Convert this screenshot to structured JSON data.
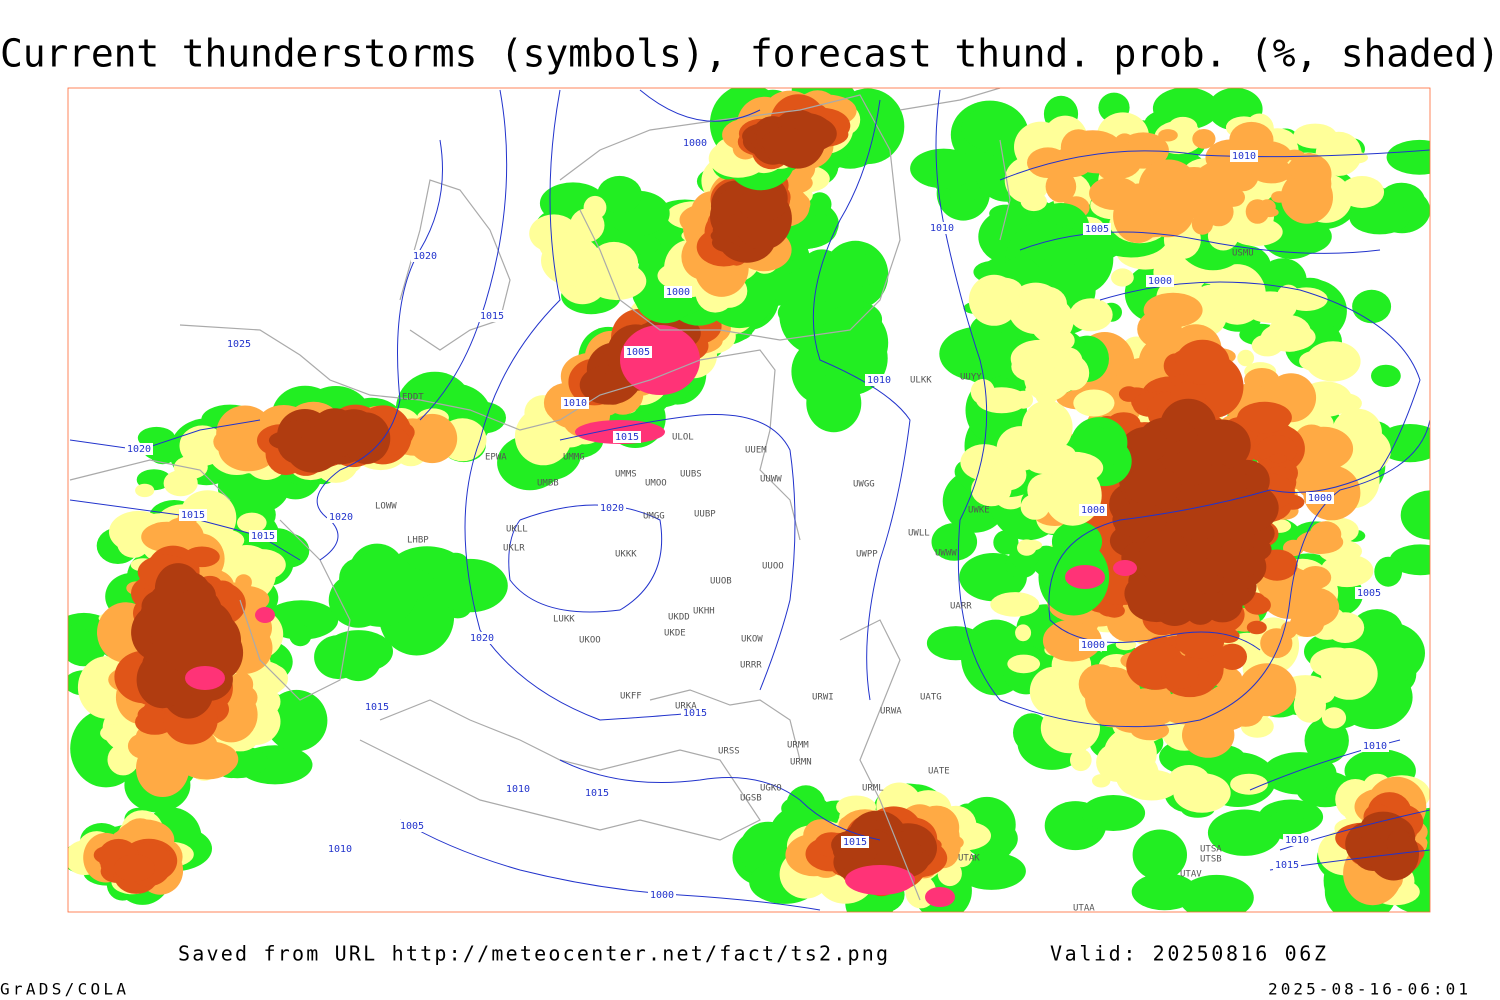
{
  "header": {
    "title": "Current thunderstorms (symbols), forecast thund. prob. (%, shaded)"
  },
  "isobar_labels": [
    1000,
    1020,
    1015,
    1025,
    1000,
    1005,
    1010,
    1015,
    1020,
    1015,
    1015,
    1020,
    1020,
    1020,
    1015,
    1015,
    1015,
    1010,
    1005,
    1010,
    1000,
    1015,
    1010,
    1010,
    1010,
    1005,
    1000,
    1000,
    1000,
    1005,
    1000,
    1010,
    1010,
    1015
  ],
  "stations": [
    "UUEM",
    "UUWW",
    "UUOB",
    "UKKK",
    "UUOO",
    "UKDD",
    "UKHH",
    "UKDE",
    "UKOW",
    "URRR",
    "UKFF",
    "URKA",
    "URSS",
    "URMM",
    "URMN",
    "UGKO",
    "UGSB",
    "URML",
    "UATE",
    "UATG",
    "UWGG",
    "UWPP",
    "UWWW",
    "UWKE",
    "UWLL",
    "UARR",
    "URWI",
    "URWA",
    "UMMS",
    "UMOO",
    "UUBS",
    "UMBB",
    "UMGG",
    "EPWA",
    "UMMG",
    "ULOL",
    "ULKK",
    "UUYY",
    "USMU",
    "UKLL",
    "UKLR",
    "LOWW",
    "LHBP",
    "EDDT",
    "UUBP",
    "UKOO",
    "LUKK",
    "UTSA",
    "UTSB",
    "UTAK",
    "UTAA",
    "UTAV"
  ],
  "footer": {
    "source": "Saved from URL http://meteocenter.net/fact/ts2.png",
    "valid": "Valid: 20250816 06Z",
    "software": "GrADS/COLA",
    "timestamp": "2025-08-16-06:01"
  }
}
